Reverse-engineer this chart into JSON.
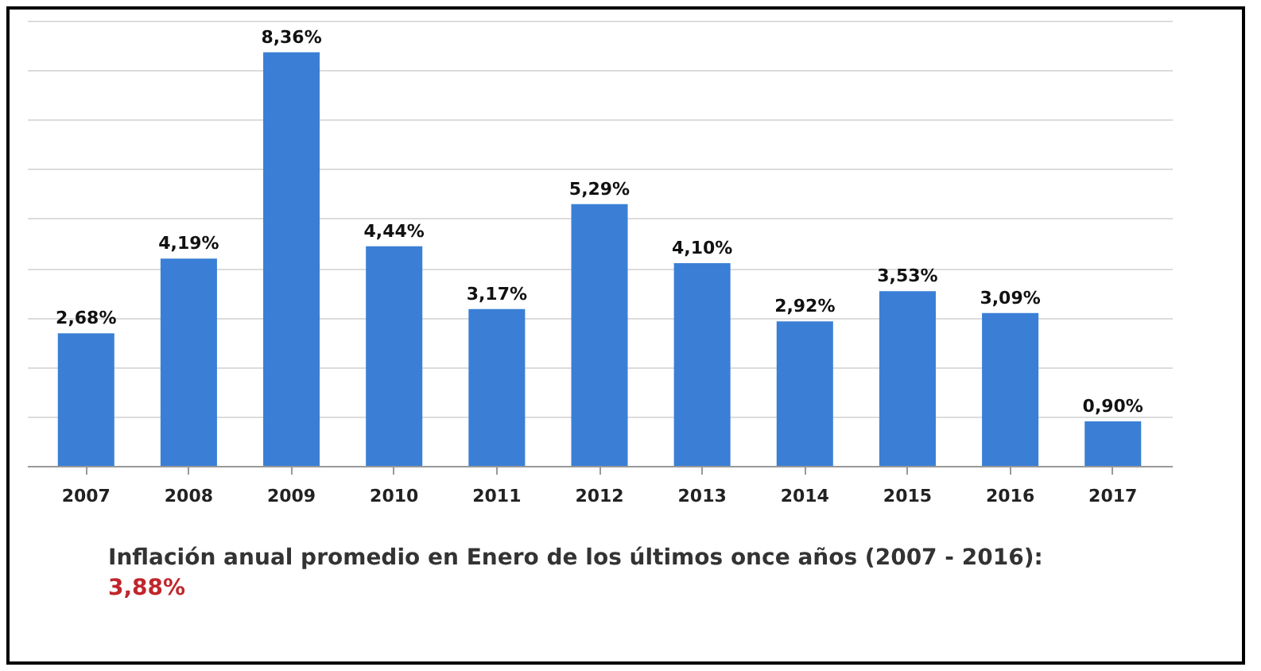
{
  "chart_data": {
    "type": "bar",
    "categories": [
      "2007",
      "2008",
      "2009",
      "2010",
      "2011",
      "2012",
      "2013",
      "2014",
      "2015",
      "2016",
      "2017"
    ],
    "values": [
      2.68,
      4.19,
      8.36,
      4.44,
      3.17,
      5.29,
      4.1,
      2.92,
      3.53,
      3.09,
      0.9
    ],
    "value_labels": [
      "2,68%",
      "4,19%",
      "8,36%",
      "4,44%",
      "3,17%",
      "5,29%",
      "4,10%",
      "2,92%",
      "3,53%",
      "3,09%",
      "0,90%"
    ],
    "color": "#3a7fd5",
    "grid": "y",
    "tick_labels": "x",
    "annotations": [
      "Inflación anual promedio en Enero de los últimos once años (2007 - 2016):",
      "3,88%"
    ]
  }
}
